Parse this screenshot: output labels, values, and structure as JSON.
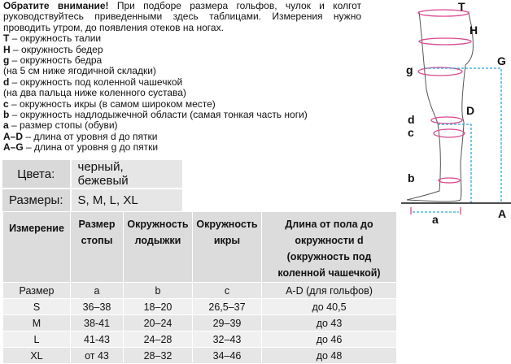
{
  "intro": {
    "attention": "Обратите внимание!",
    "line1_rest": "При подборе размера гольфов, чулок и колгот",
    "line2": "руководствуйтесь приведенными здесь таблицами. Измерения нужно",
    "line3": "проводить утром, до появления отеков на ногах.",
    "legend": [
      {
        "key": "T",
        "text": " – окружность талии"
      },
      {
        "key": "H",
        "text": " – окружность бедер"
      },
      {
        "key": "g",
        "text": " – окружность бедра"
      },
      {
        "key": "",
        "text": "(на 5 см ниже ягодичной складки)"
      },
      {
        "key": "d",
        "text": " – окружность под коленной чашечкой"
      },
      {
        "key": "",
        "text": "(на два пальца ниже коленного сустава)"
      },
      {
        "key": "c",
        "text": " – окружность икры (в самом широком месте)"
      },
      {
        "key": "b",
        "text": " – окружность надлодыжечной области (самая тонкая часть ноги)"
      },
      {
        "key": "a",
        "text": " – размер стопы (обуви)"
      },
      {
        "key": "A–D",
        "text": " – длина от уровня d до пятки"
      },
      {
        "key": "A–G",
        "text": " – длина от уровня g до пятки"
      }
    ]
  },
  "info": [
    {
      "label": "Цвета:",
      "value": "черный, бежевый"
    },
    {
      "label": "Размеры:",
      "value": "S, M, L, XL"
    }
  ],
  "table": {
    "headers": [
      "Измерение",
      "Размер стопы",
      "Окружность лодыжки",
      "Окружность икры",
      "Длина от пола до окружности d (окружность под коленной чашечкой)"
    ],
    "rows": [
      [
        "Размер",
        "a",
        "b",
        "c",
        "A-D (для гольфов)"
      ],
      [
        "S",
        "36–38",
        "18–20",
        "26,5–37",
        "до 40,5"
      ],
      [
        "M",
        "38-41",
        "20–24",
        "29–39",
        "до 43"
      ],
      [
        "L",
        "41-43",
        "24–28",
        "32–43",
        "до 46"
      ],
      [
        "XL",
        "от 43",
        "28–32",
        "34–46",
        "до 48"
      ]
    ]
  },
  "diagram": {
    "labels": {
      "T": "T",
      "H": "H",
      "g": "g",
      "G": "G",
      "D": "D",
      "d": "d",
      "c": "c",
      "b": "b",
      "A": "A",
      "a": "a"
    },
    "colors": {
      "ring": "#d9478f",
      "dashed": "#2aa7d8",
      "outline": "#555555"
    }
  }
}
